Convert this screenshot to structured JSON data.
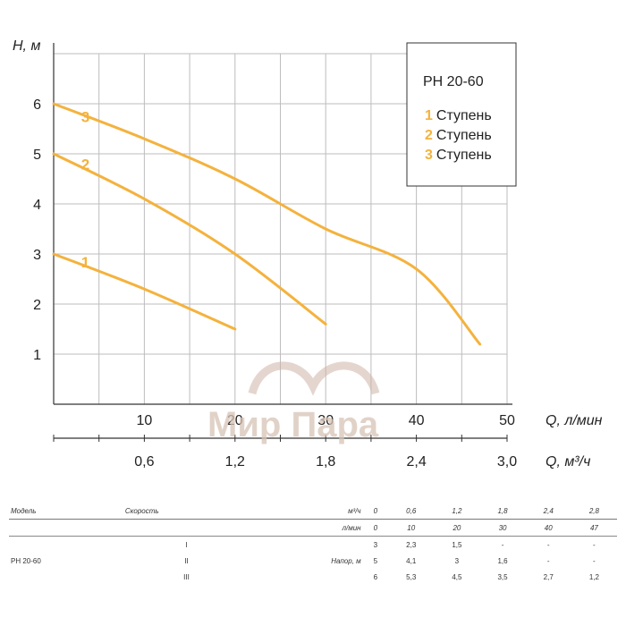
{
  "chart_data": {
    "type": "line",
    "xlabel": "Q, л/мин",
    "xlabel2": "Q, м³/ч",
    "ylabel": "H, м",
    "xlim": [
      0,
      50
    ],
    "ylim": [
      0,
      7
    ],
    "x_ticks": [
      "10",
      "20",
      "30",
      "40",
      "50"
    ],
    "x2_ticks": [
      "0,6",
      "1,2",
      "1,8",
      "2,4",
      "3,0"
    ],
    "y_ticks": [
      "1",
      "2",
      "3",
      "4",
      "5",
      "6"
    ],
    "grid": true,
    "legend": {
      "title": "PH 20-60",
      "entries": [
        {
          "num": "1",
          "label": "Ступень"
        },
        {
          "num": "2",
          "label": "Ступень"
        },
        {
          "num": "3",
          "label": "Ступень"
        }
      ],
      "position": "top-right"
    },
    "series": [
      {
        "name": "1",
        "x": [
          0,
          10,
          20
        ],
        "y": [
          3,
          2.3,
          1.5
        ]
      },
      {
        "name": "2",
        "x": [
          0,
          10,
          20,
          30
        ],
        "y": [
          5,
          4.1,
          3,
          1.6
        ]
      },
      {
        "name": "3",
        "x": [
          0,
          10,
          20,
          30,
          40,
          47
        ],
        "y": [
          6,
          5.3,
          4.5,
          3.5,
          2.7,
          1.2
        ]
      }
    ],
    "color": "#f4b23d"
  },
  "watermark": "Мир Пара",
  "table": {
    "col_model": "Модель",
    "col_speed": "Скорость",
    "unit_m3h": "м³/ч",
    "unit_lmin": "л/мин",
    "m3h": [
      "0",
      "0,6",
      "1,2",
      "1,8",
      "2,4",
      "2,8"
    ],
    "lmin": [
      "0",
      "10",
      "20",
      "30",
      "40",
      "47"
    ],
    "model": "PH 20-60",
    "head_label": "Напор, м",
    "rows": [
      {
        "speed": "I",
        "values": [
          "3",
          "2,3",
          "1,5",
          "-",
          "-",
          "-"
        ]
      },
      {
        "speed": "II",
        "values": [
          "5",
          "4,1",
          "3",
          "1,6",
          "-",
          "-"
        ]
      },
      {
        "speed": "III",
        "values": [
          "6",
          "5,3",
          "4,5",
          "3,5",
          "2,7",
          "1,2"
        ]
      }
    ]
  }
}
